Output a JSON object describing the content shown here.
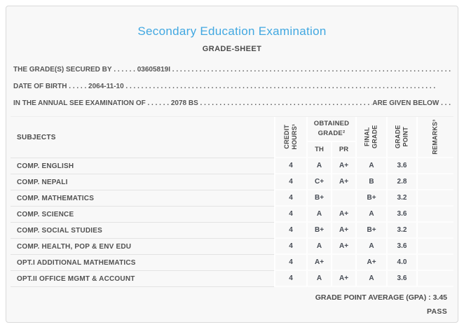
{
  "title": "Secondary Education Examination",
  "subtitle": "GRADE-SHEET",
  "info_lines": [
    {
      "label": "THE GRADE(S) SECURED BY",
      "leader": " . . . . . . ",
      "value": "03605819I",
      "suffix": ""
    },
    {
      "label": "DATE OF BIRTH",
      "leader": " . . . . . ",
      "value": "2064-11-10",
      "suffix": ""
    },
    {
      "label": "IN THE ANNUAL SEE EXAMINATION OF",
      "leader": " . . . . . . ",
      "value": "2078 BS",
      "suffix": "ARE GIVEN BELOW . . ."
    }
  ],
  "leader_fill": " . . . . . . . . . . . . . . . . . . . . . . . . . . . . . . . . . . . . . . . . . . . . . . . . . . . . . . . . . . . . . . . . . . . . . . . . . . . . . . . . ",
  "table": {
    "headers": {
      "subjects": "SUBJECTS",
      "credit_hours": "CREDIT\nHOURS¹",
      "obtained_grade": "OBTAINED\nGRADE²",
      "th": "TH",
      "pr": "PR",
      "final_grade": "FINAL\nGRADE",
      "grade_point": "GRADE\nPOINT",
      "remarks": "REMARKS³"
    },
    "rows": [
      {
        "subject": "COMP. ENGLISH",
        "credit": "4",
        "th": "A",
        "pr": "A+",
        "final": "A",
        "gp": "3.6",
        "remarks": ""
      },
      {
        "subject": "COMP. NEPALI",
        "credit": "4",
        "th": "C+",
        "pr": "A+",
        "final": "B",
        "gp": "2.8",
        "remarks": ""
      },
      {
        "subject": "COMP. MATHEMATICS",
        "credit": "4",
        "th": "B+",
        "pr": "",
        "final": "B+",
        "gp": "3.2",
        "remarks": ""
      },
      {
        "subject": "COMP. SCIENCE",
        "credit": "4",
        "th": "A",
        "pr": "A+",
        "final": "A",
        "gp": "3.6",
        "remarks": ""
      },
      {
        "subject": "COMP. SOCIAL STUDIES",
        "credit": "4",
        "th": "B+",
        "pr": "A+",
        "final": "B+",
        "gp": "3.2",
        "remarks": ""
      },
      {
        "subject": "COMP. HEALTH, POP & ENV EDU",
        "credit": "4",
        "th": "A",
        "pr": "A+",
        "final": "A",
        "gp": "3.6",
        "remarks": ""
      },
      {
        "subject": "OPT.I ADDITIONAL MATHEMATICS",
        "credit": "4",
        "th": "A+",
        "pr": "",
        "final": "A+",
        "gp": "4.0",
        "remarks": ""
      },
      {
        "subject": "OPT.II OFFICE MGMT & ACCOUNT",
        "credit": "4",
        "th": "A",
        "pr": "A+",
        "final": "A",
        "gp": "3.6",
        "remarks": ""
      }
    ]
  },
  "summary": {
    "gpa_label": "GRADE POINT AVERAGE (GPA) : ",
    "gpa_value": "3.45",
    "result": "PASS"
  },
  "colors": {
    "title_accent": "#42a8e1",
    "body_text": "#4f4f4f",
    "card_background": "#f8f8f8",
    "card_border": "#d9d9d9"
  }
}
